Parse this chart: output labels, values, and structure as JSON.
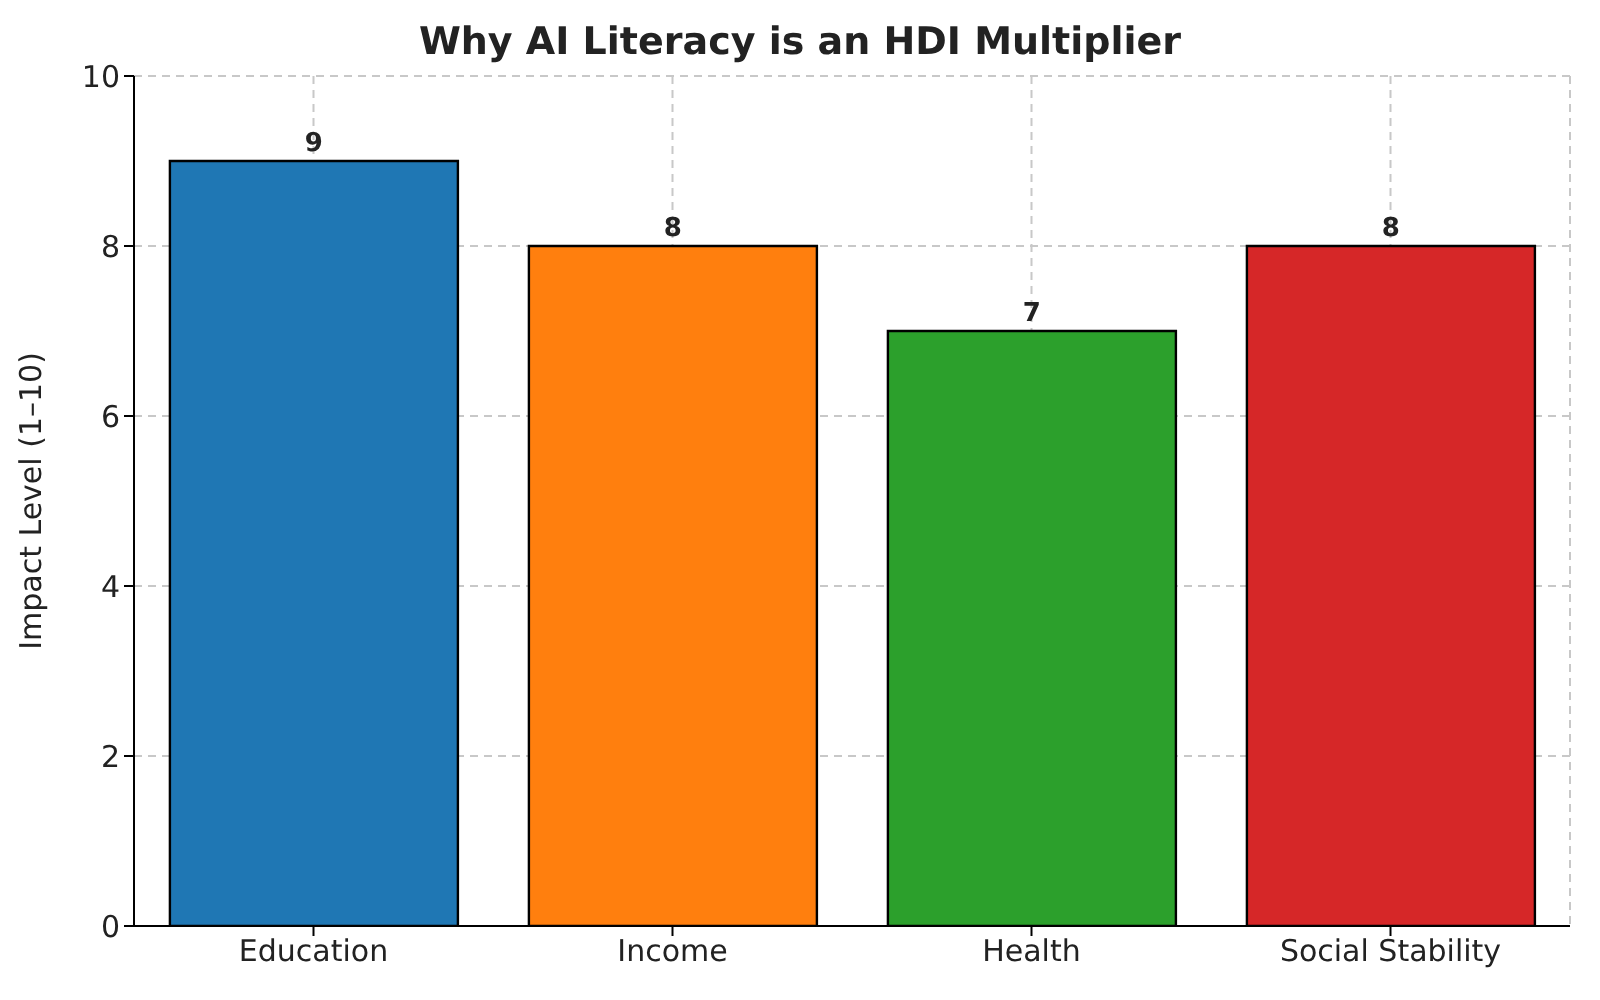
{
  "chart_data": {
    "type": "bar",
    "title": "Why AI Literacy is an HDI Multiplier",
    "ylabel": "Impact Level (1–10)",
    "categories": [
      "Education",
      "Income",
      "Health",
      "Social Stability"
    ],
    "values": [
      9,
      8,
      7,
      8
    ],
    "colors": [
      "#1f77b4",
      "#ff7f0e",
      "#2ca02c",
      "#d62728"
    ],
    "ylim": [
      0,
      10
    ],
    "yticks": [
      0,
      2,
      4,
      6,
      8,
      10
    ],
    "grid": true,
    "data_labels": true
  }
}
